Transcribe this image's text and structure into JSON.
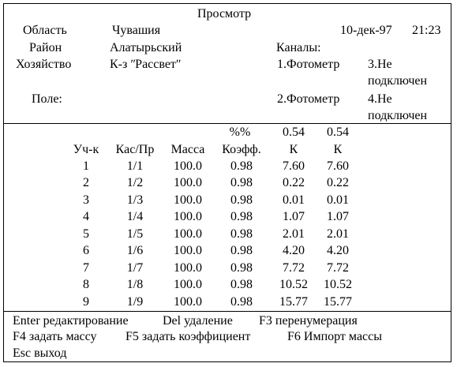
{
  "header": {
    "title": "Просмотр",
    "date": "10-дек-97",
    "time": "21:23",
    "region_label": "Область",
    "region_value": "Чувашия",
    "district_label": "Район",
    "district_value": "Алатырьский",
    "farm_label": "Хозяйство",
    "farm_value": "К-з ʺРассветʺ",
    "field_label": "Поле:",
    "channels_label": "Каналы:",
    "channel1": "1.Фотометр",
    "channel2": "2.Фотометр",
    "channel3_line1": "3.Не",
    "channel3_line2": "подключен",
    "channel4_line1": "4.Не",
    "channel4_line2": "подключен"
  },
  "table": {
    "super_headers": {
      "coef": "%%",
      "k1": "0.54",
      "k2": "0.54"
    },
    "headers": {
      "plot": "Уч-к",
      "cas": "Кас/Пр",
      "mass": "Масса",
      "coef": "Коэфф.",
      "k1": "К",
      "k2": "К"
    },
    "rows": [
      {
        "plot": "1",
        "cas": "1/1",
        "mass": "100.0",
        "coef": "0.98",
        "k1": "7.60",
        "k2": "7.60"
      },
      {
        "plot": "2",
        "cas": "1/2",
        "mass": "100.0",
        "coef": "0.98",
        "k1": "0.22",
        "k2": "0.22"
      },
      {
        "plot": "3",
        "cas": "1/3",
        "mass": "100.0",
        "coef": "0.98",
        "k1": "0.01",
        "k2": "0.01"
      },
      {
        "plot": "4",
        "cas": "1/4",
        "mass": "100.0",
        "coef": "0.98",
        "k1": "1.07",
        "k2": "1.07"
      },
      {
        "plot": "5",
        "cas": "1/5",
        "mass": "100.0",
        "coef": "0.98",
        "k1": "2.01",
        "k2": "2.01"
      },
      {
        "plot": "6",
        "cas": "1/6",
        "mass": "100.0",
        "coef": "0.98",
        "k1": "4.20",
        "k2": "4.20"
      },
      {
        "plot": "7",
        "cas": "1/7",
        "mass": "100.0",
        "coef": "0.98",
        "k1": "7.72",
        "k2": "7.72"
      },
      {
        "plot": "8",
        "cas": "1/8",
        "mass": "100.0",
        "coef": "0.98",
        "k1": "10.52",
        "k2": "10.52"
      },
      {
        "plot": "9",
        "cas": "1/9",
        "mass": "100.0",
        "coef": "0.98",
        "k1": "15.77",
        "k2": "15.77"
      }
    ]
  },
  "footer": {
    "enter": "Enter редактирование",
    "del": "Del удаление",
    "f3": "F3 перенумерация",
    "f4": "F4 задать массу",
    "f5": "F5 задать коэффициент",
    "f6": "F6 Импорт массы",
    "esc": "Esc выход"
  }
}
